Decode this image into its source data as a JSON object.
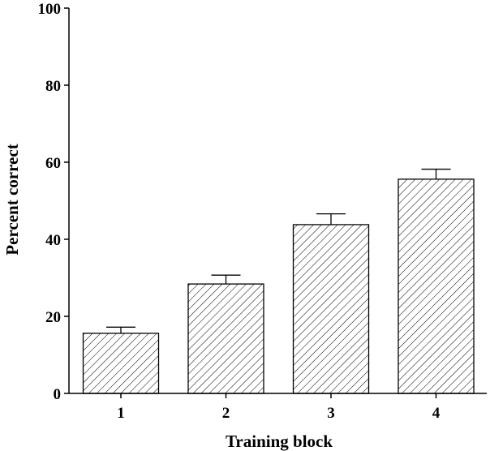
{
  "chart_data": {
    "type": "bar",
    "title": "",
    "xlabel": "Training block",
    "ylabel": "Percent correct",
    "categories": [
      "1",
      "2",
      "3",
      "4"
    ],
    "series": [
      {
        "values": [
          15.6,
          28.4,
          43.8,
          55.6
        ],
        "error": [
          1.6,
          2.3,
          2.8,
          2.6
        ]
      }
    ],
    "ylim": [
      0,
      100
    ],
    "yticks": [
      "0",
      "20",
      "40",
      "60",
      "80",
      "100"
    ],
    "grid": false,
    "legend": "none",
    "bar_fill": "diagonal-hatch",
    "colors": {
      "bar_edge": "#000000",
      "hatch": "#000000",
      "background": "#ffffff"
    }
  }
}
